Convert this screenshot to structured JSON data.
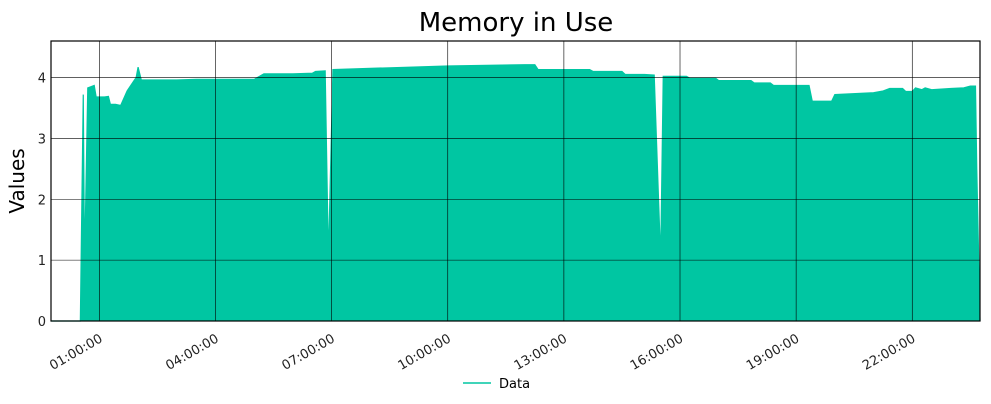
{
  "chart_data": {
    "type": "area",
    "title": "Memory in Use",
    "xlabel": "",
    "ylabel": "Values",
    "x_tick_labels": [
      "01:00:00",
      "04:00:00",
      "07:00:00",
      "10:00:00",
      "13:00:00",
      "16:00:00",
      "19:00:00",
      "22:00:00"
    ],
    "y_tick_labels": [
      "0",
      "1",
      "2",
      "3",
      "4"
    ],
    "xlim": [
      "-00:15:00",
      "23:45:00"
    ],
    "ylim": [
      0,
      4.6
    ],
    "grid": true,
    "legend_position": "bottom-center",
    "series": [
      {
        "name": "Data",
        "color": "#00c6a2",
        "points": [
          [
            "-00:15:00",
            0.0
          ],
          [
            "00:30:00",
            0.0
          ],
          [
            "00:30:30",
            0.0
          ],
          [
            "00:35:00",
            3.72
          ],
          [
            "00:37:00",
            0.9
          ],
          [
            "00:42:00",
            3.83
          ],
          [
            "00:47:00",
            3.85
          ],
          [
            "00:52:00",
            3.87
          ],
          [
            "00:55:00",
            3.68
          ],
          [
            "01:00:00",
            3.68
          ],
          [
            "01:08:00",
            3.68
          ],
          [
            "01:14:00",
            3.69
          ],
          [
            "01:17:00",
            3.56
          ],
          [
            "01:25:00",
            3.56
          ],
          [
            "01:33:00",
            3.54
          ],
          [
            "01:43:00",
            3.78
          ],
          [
            "01:57:00",
            4.0
          ],
          [
            "02:00:00",
            4.17
          ],
          [
            "02:05:00",
            3.96
          ],
          [
            "02:30:00",
            3.96
          ],
          [
            "03:00:00",
            3.96
          ],
          [
            "03:30:00",
            3.97
          ],
          [
            "04:00:00",
            3.97
          ],
          [
            "04:30:00",
            3.97
          ],
          [
            "05:00:00",
            3.97
          ],
          [
            "05:15:00",
            4.06
          ],
          [
            "06:00:00",
            4.06
          ],
          [
            "06:30:00",
            4.07
          ],
          [
            "06:35:00",
            4.1
          ],
          [
            "06:50:00",
            4.11
          ],
          [
            "06:55:00",
            1.0
          ],
          [
            "07:02:00",
            4.13
          ],
          [
            "08:00:00",
            4.15
          ],
          [
            "09:00:00",
            4.17
          ],
          [
            "10:00:00",
            4.19
          ],
          [
            "11:00:00",
            4.2
          ],
          [
            "12:00:00",
            4.21
          ],
          [
            "12:15:00",
            4.21
          ],
          [
            "12:20:00",
            4.13
          ],
          [
            "13:00:00",
            4.13
          ],
          [
            "13:40:00",
            4.13
          ],
          [
            "13:45:00",
            4.1
          ],
          [
            "14:30:00",
            4.1
          ],
          [
            "14:35:00",
            4.05
          ],
          [
            "15:05:00",
            4.05
          ],
          [
            "15:20:00",
            4.04
          ],
          [
            "15:30:00",
            1.0
          ],
          [
            "15:34:00",
            4.02
          ],
          [
            "16:10:00",
            4.02
          ],
          [
            "16:15:00",
            3.99
          ],
          [
            "16:55:00",
            3.99
          ],
          [
            "17:00:00",
            3.95
          ],
          [
            "17:50:00",
            3.95
          ],
          [
            "17:55:00",
            3.91
          ],
          [
            "18:20:00",
            3.91
          ],
          [
            "18:25:00",
            3.87
          ],
          [
            "19:20:00",
            3.87
          ],
          [
            "19:25:00",
            3.61
          ],
          [
            "19:55:00",
            3.61
          ],
          [
            "20:00:00",
            3.72
          ],
          [
            "21:00:00",
            3.75
          ],
          [
            "21:15:00",
            3.78
          ],
          [
            "21:25:00",
            3.82
          ],
          [
            "21:45:00",
            3.82
          ],
          [
            "21:50:00",
            3.77
          ],
          [
            "22:00:00",
            3.77
          ],
          [
            "22:05:00",
            3.83
          ],
          [
            "22:15:00",
            3.8
          ],
          [
            "22:20:00",
            3.83
          ],
          [
            "22:30:00",
            3.8
          ],
          [
            "23:00:00",
            3.82
          ],
          [
            "23:20:00",
            3.83
          ],
          [
            "23:30:00",
            3.86
          ],
          [
            "23:38:00",
            3.86
          ],
          [
            "23:40:00",
            2.5
          ],
          [
            "23:45:00",
            0.0
          ]
        ]
      }
    ]
  }
}
